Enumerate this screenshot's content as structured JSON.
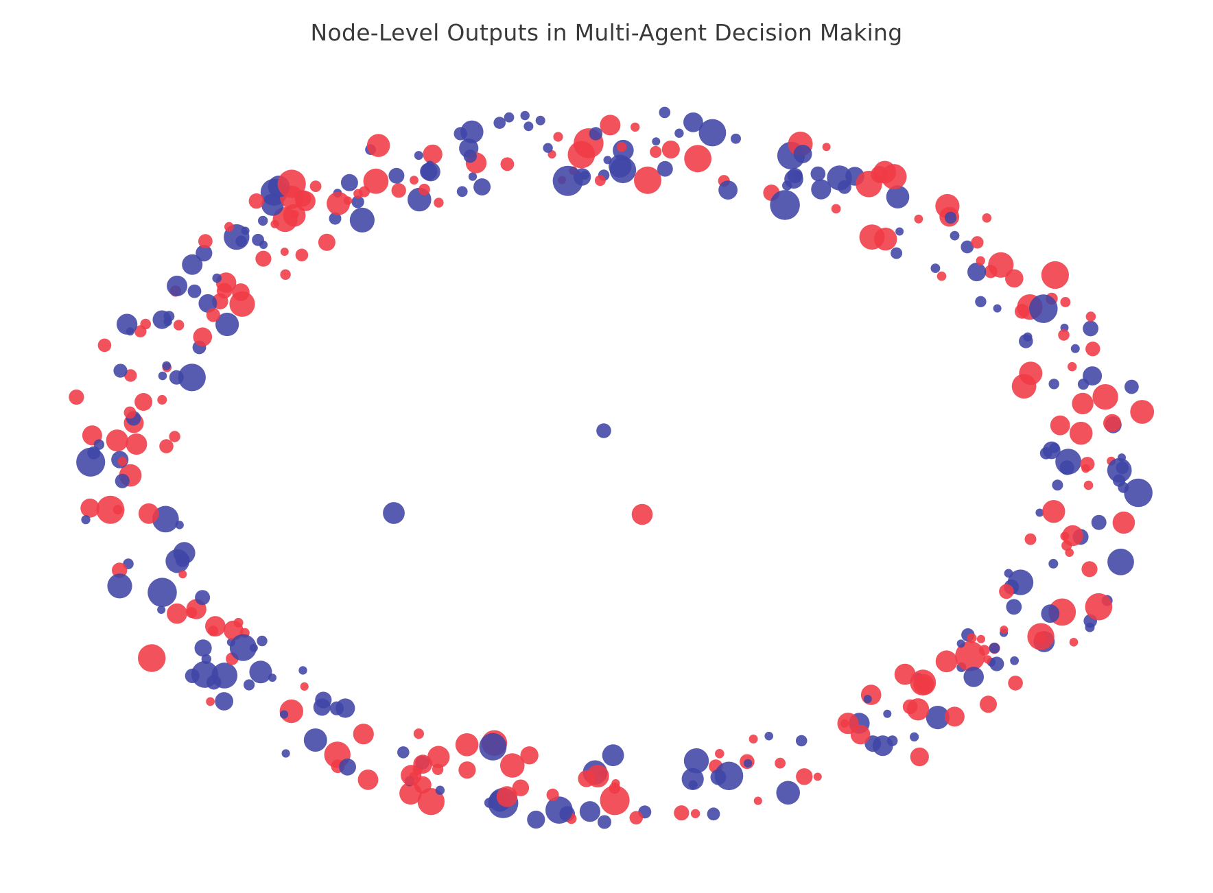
{
  "chart_data": {
    "type": "scatter",
    "title": "Node-Level Outputs in Multi-Agent Decision Making",
    "layout": "ring of nodes around three central nodes",
    "axes_visible": false,
    "grid": false,
    "legend": "none",
    "colors": {
      "blue": "#4046a6",
      "red": "#ef3a46"
    },
    "central_nodes": [
      {
        "angle": 0,
        "radius": 0.0,
        "size": 0.3,
        "color": "blue"
      },
      {
        "angle": 0,
        "radius": 0.0,
        "size": 0.62,
        "color": "blue"
      },
      {
        "angle": 0,
        "radius": 0.0,
        "size": 0.58,
        "color": "red"
      }
    ],
    "ring_node_count": 420,
    "ring_seed": 7
  }
}
